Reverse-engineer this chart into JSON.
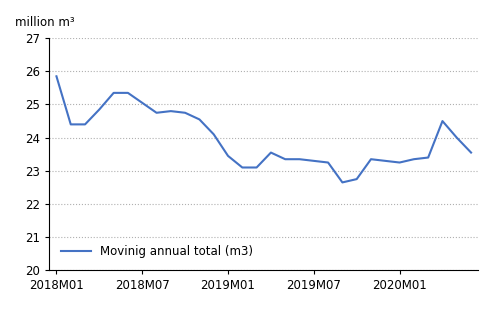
{
  "x_labels": [
    "2018M01",
    "2018M07",
    "2019M01",
    "2019M07",
    "2020M01"
  ],
  "x_tick_positions": [
    0,
    6,
    12,
    18,
    24
  ],
  "ylabel_above": "million m³",
  "ylim": [
    20,
    27
  ],
  "yticks": [
    20,
    21,
    22,
    23,
    24,
    25,
    26,
    27
  ],
  "line_color": "#4472C4",
  "line_width": 1.5,
  "legend_label": "Movinig annual total (m3)",
  "background_color": "#ffffff",
  "grid_color": "#b0b0b0",
  "values": [
    25.85,
    24.4,
    24.4,
    24.85,
    25.35,
    25.35,
    25.05,
    24.75,
    24.8,
    24.75,
    24.55,
    24.1,
    23.45,
    23.1,
    23.1,
    23.55,
    23.35,
    23.35,
    23.3,
    23.25,
    22.65,
    22.75,
    23.35,
    23.3,
    23.25,
    23.35,
    23.4,
    24.5,
    24.0,
    23.55
  ]
}
